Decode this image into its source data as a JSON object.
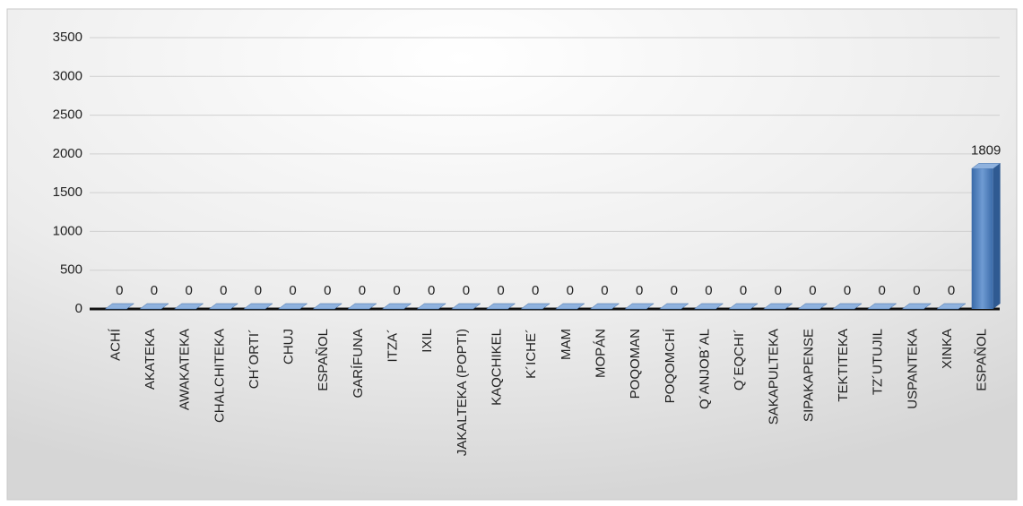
{
  "chart_data": {
    "type": "bar",
    "categories": [
      "ACHÍ",
      "AKATEKA",
      "AWAKATEKA",
      "CHALCHITEKA",
      "CH´ORTI´",
      "CHUJ",
      "ESPAÑOL",
      "GARÍFUNA",
      "ITZA´",
      "IXIL",
      "JAKALTEKA (POPTI)",
      "KAQCHIKEL",
      "K´ICHE´",
      "MAM",
      "MOPÁN",
      "POQOMAN",
      "POQOMCHÍ",
      "Q´ANJOB´AL",
      "Q´EQCHI´",
      "SAKAPULTEKA",
      "SIPAKAPENSE",
      "TEKTITEKA",
      "TZ´UTUJIL",
      "USPANTEKA",
      "XINKA",
      "ESPAÑOL"
    ],
    "values": [
      0,
      0,
      0,
      0,
      0,
      0,
      0,
      0,
      0,
      0,
      0,
      0,
      0,
      0,
      0,
      0,
      0,
      0,
      0,
      0,
      0,
      0,
      0,
      0,
      0,
      1809
    ],
    "color": "#4f81bd",
    "ylim": [
      0,
      3500
    ],
    "yticks": [
      0,
      500,
      1000,
      1500,
      2000,
      2500,
      3000,
      3500
    ],
    "grid": true
  }
}
